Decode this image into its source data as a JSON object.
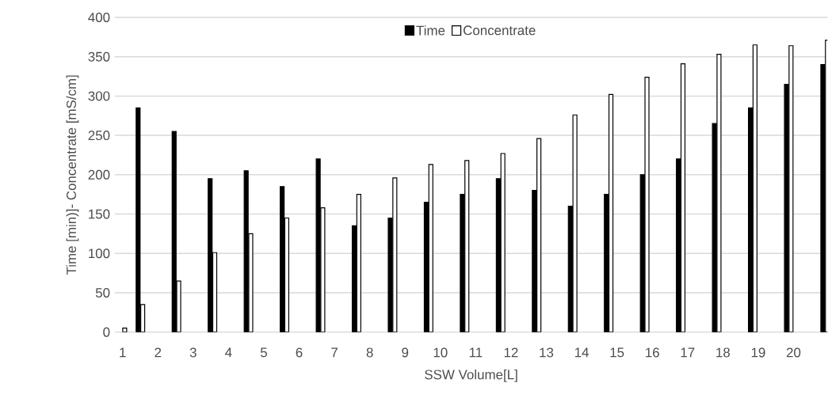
{
  "chart_data": {
    "type": "bar",
    "xlabel": "SSW Volume[L]",
    "ylabel": "Time [min)]- Concentrate [mS/cm]",
    "series": [
      {
        "name": "Time",
        "color": "#000000",
        "x": [
          1.44,
          2.46,
          3.48,
          4.5,
          5.52,
          6.54,
          7.56,
          8.58,
          9.6,
          10.62,
          11.64,
          12.66,
          13.68,
          14.7,
          15.72,
          16.74,
          17.76,
          18.78,
          19.8,
          20.83
        ],
        "values": [
          285,
          255,
          195,
          205,
          185,
          220,
          135,
          145,
          165,
          175,
          195,
          180,
          160,
          175,
          200,
          220,
          265,
          285,
          315,
          340
        ]
      },
      {
        "name": "Concentrate",
        "color": "#ffffff",
        "x": [
          1.06,
          1.57,
          2.59,
          3.61,
          4.63,
          5.65,
          6.67,
          7.69,
          8.71,
          9.73,
          10.75,
          11.77,
          12.79,
          13.81,
          14.83,
          15.85,
          16.87,
          17.89,
          18.91,
          19.93,
          20.96
        ],
        "values": [
          5,
          35,
          65,
          101,
          125,
          145,
          158,
          175,
          196,
          213,
          218,
          227,
          246,
          276,
          302,
          324,
          341,
          353,
          365,
          364,
          371
        ]
      }
    ],
    "xlim": [
      0.78,
      20.96
    ],
    "xticks": [
      1,
      2,
      3,
      4,
      5,
      6,
      7,
      8,
      9,
      10,
      11,
      12,
      13,
      14,
      15,
      16,
      17,
      18,
      19,
      20
    ],
    "ylim": [
      0,
      400
    ],
    "yticks": [
      0,
      50,
      100,
      150,
      200,
      250,
      300,
      350,
      400
    ],
    "grid": "y",
    "legend": "top"
  }
}
